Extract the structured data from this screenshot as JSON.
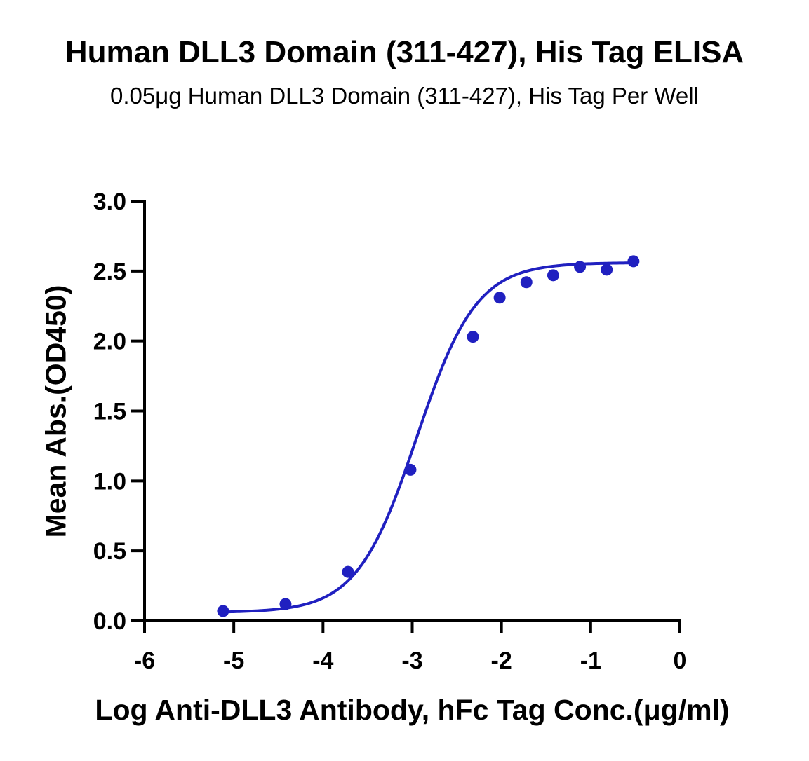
{
  "chart_data": {
    "type": "scatter",
    "title": "Human DLL3 Domain (311-427), His Tag ELISA",
    "subtitle": "0.05μg Human DLL3 Domain (311-427), His Tag Per Well",
    "xlabel": "Log Anti-DLL3 Antibody, hFc Tag Conc.(μg/ml)",
    "ylabel": "Mean Abs.(OD450)",
    "xlim": [
      -6,
      0
    ],
    "ylim": [
      0,
      3.0
    ],
    "x_ticks": [
      "-6",
      "-5",
      "-4",
      "-3",
      "-2",
      "-1",
      "0"
    ],
    "y_ticks": [
      "0.0",
      "0.5",
      "1.0",
      "1.5",
      "2.0",
      "2.5",
      "3.0"
    ],
    "series": [
      {
        "points": [
          {
            "x": -5.12,
            "y": 0.07
          },
          {
            "x": -4.42,
            "y": 0.12
          },
          {
            "x": -3.72,
            "y": 0.35
          },
          {
            "x": -3.02,
            "y": 1.08
          },
          {
            "x": -2.32,
            "y": 2.03
          },
          {
            "x": -2.02,
            "y": 2.31
          },
          {
            "x": -1.72,
            "y": 2.42
          },
          {
            "x": -1.42,
            "y": 2.47
          },
          {
            "x": -1.12,
            "y": 2.53
          },
          {
            "x": -0.82,
            "y": 2.51
          },
          {
            "x": -0.52,
            "y": 2.57
          }
        ],
        "fit_curve": {
          "bottom": 0.06,
          "top": 2.56,
          "log_ec50": -2.95,
          "hill_slope": 1.3,
          "x_range": [
            -5.12,
            -0.52
          ]
        }
      }
    ],
    "grid": false,
    "colors": {
      "series": "#2020c0",
      "axis": "#000000"
    }
  }
}
